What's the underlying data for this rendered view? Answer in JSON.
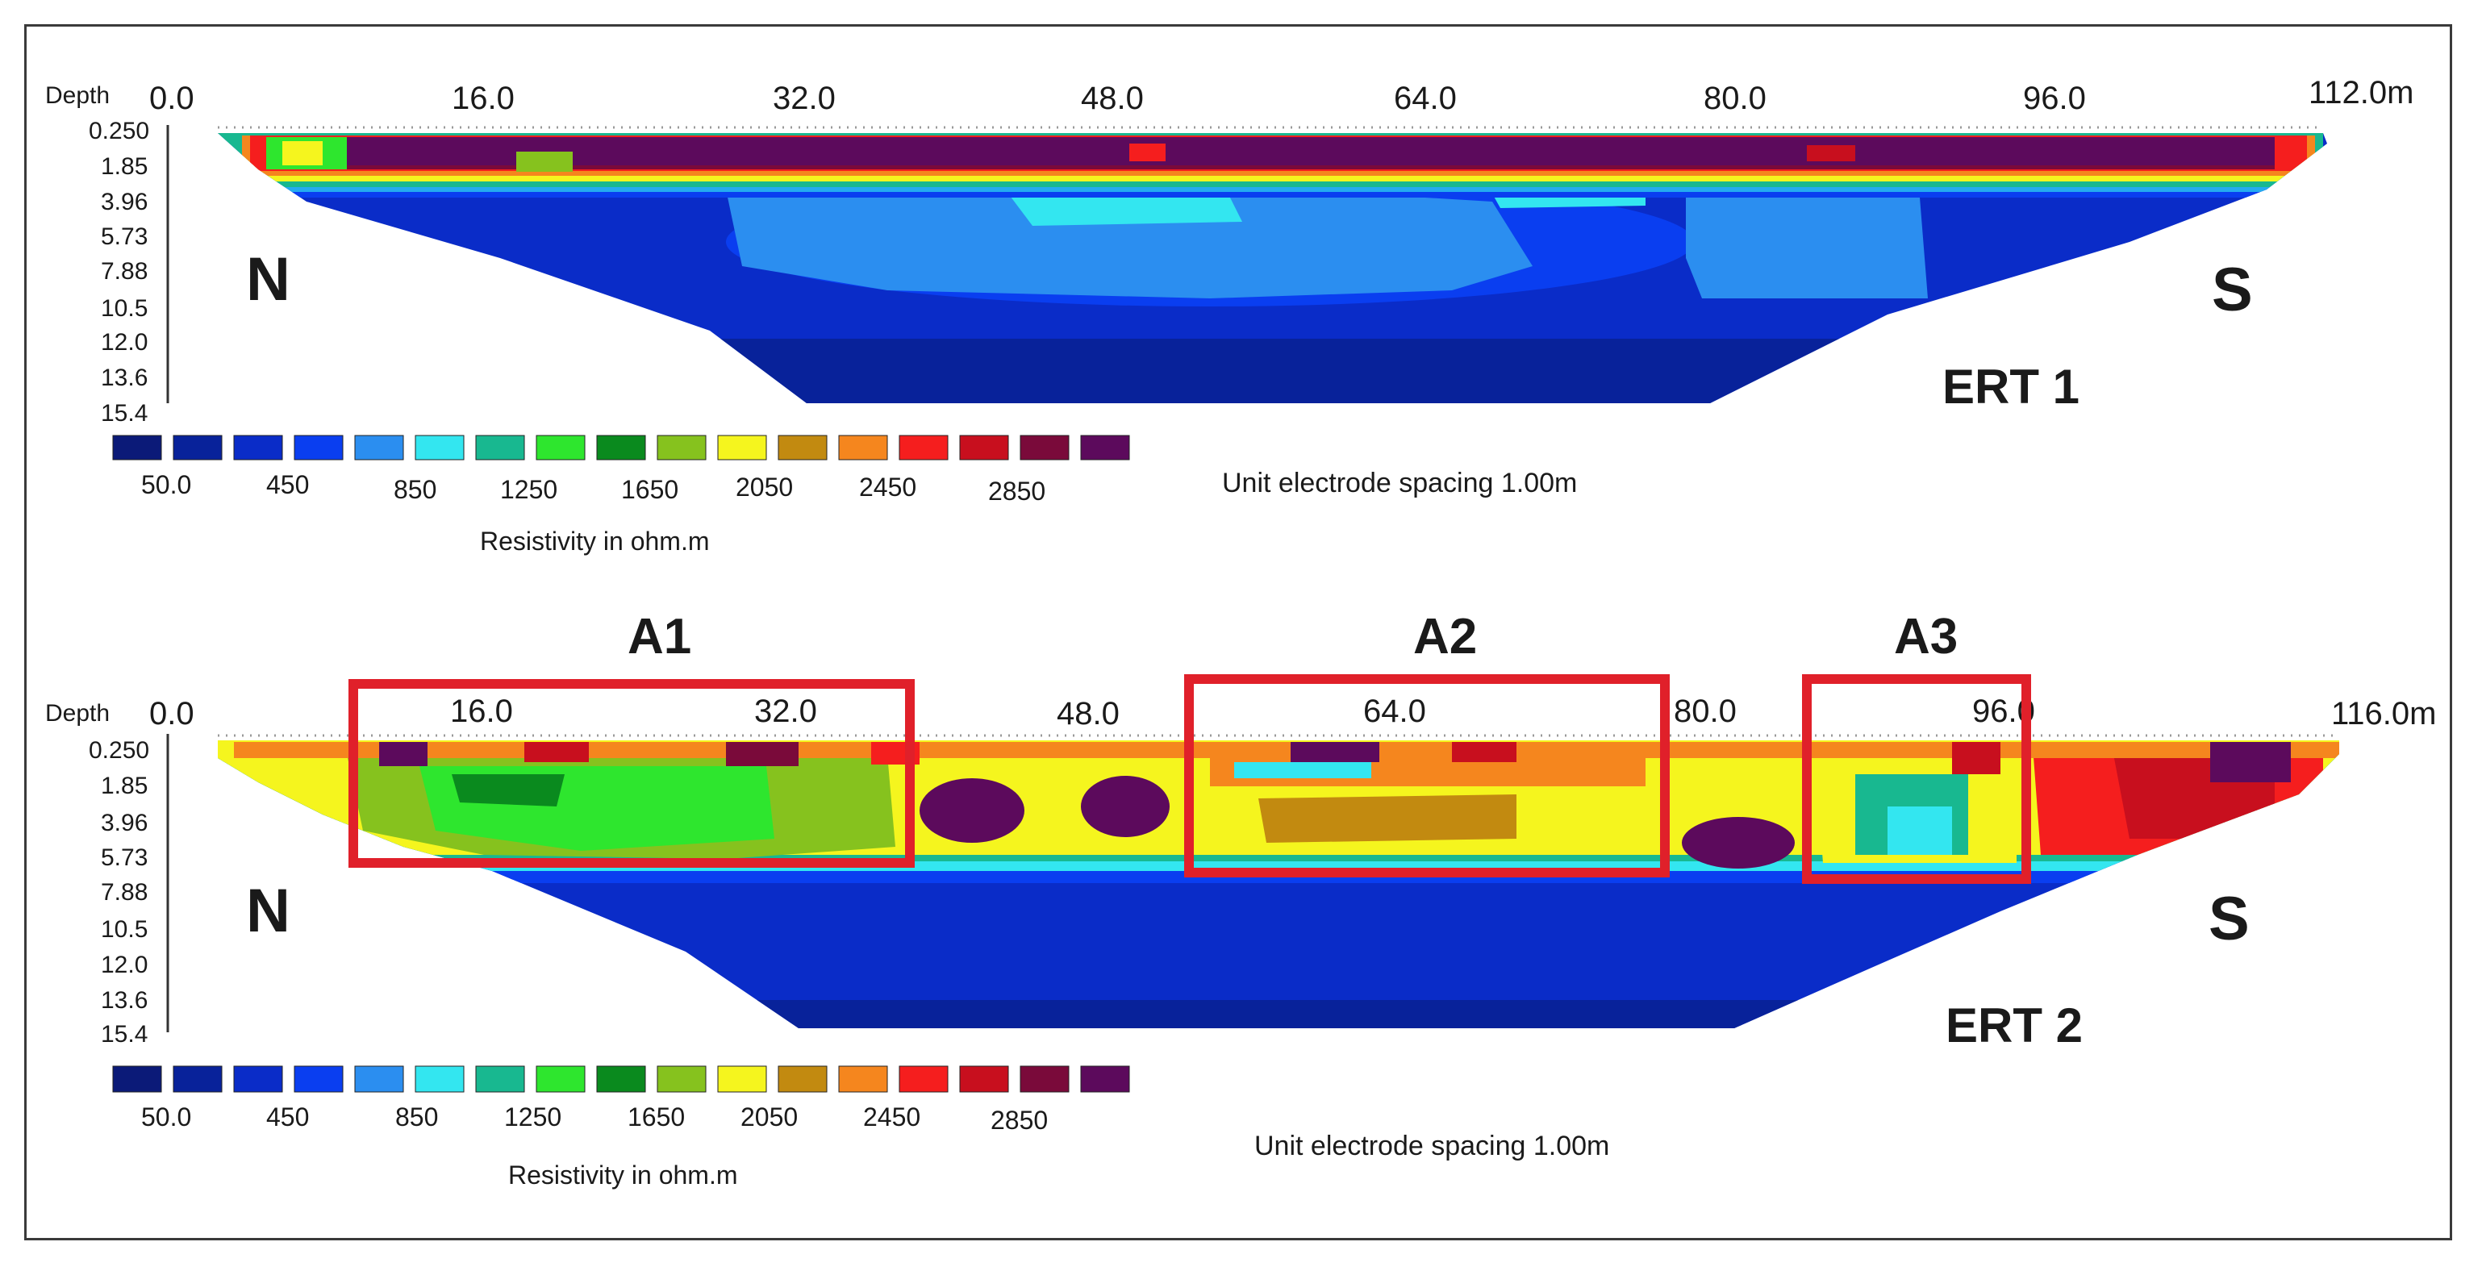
{
  "colors": {
    "frame": "#3a3a3a",
    "anomaly_box": "#e0202a",
    "resistivity_scale": [
      "#0b1a78",
      "#08229a",
      "#0a2cc8",
      "#0a3ef0",
      "#2b8ef0",
      "#33e6f0",
      "#18b890",
      "#2ee62e",
      "#0a8a1e",
      "#86c21e",
      "#f5f51e",
      "#c28a10",
      "#f5861e",
      "#f51e1e",
      "#c80f1e",
      "#7a0a3a",
      "#5c0a5c"
    ]
  },
  "panels": [
    {
      "name": "ERT 1",
      "depth_title": "Depth",
      "distance_ticks": [
        "0.0",
        "16.0",
        "32.0",
        "48.0",
        "64.0",
        "80.0",
        "96.0",
        "112.0m"
      ],
      "depth_ticks": [
        "0.250",
        "1.85",
        "3.96",
        "5.73",
        "7.88",
        "10.5",
        "12.0",
        "13.6",
        "15.4"
      ],
      "left_direction": "N",
      "right_direction": "S",
      "legend_values": [
        "50.0",
        "450",
        "850",
        "1250",
        "1650",
        "2050",
        "2450",
        "2850"
      ],
      "legend_title": "Resistivity in ohm.m",
      "electrode_spacing": "Unit electrode spacing 1.00m",
      "anomalies": []
    },
    {
      "name": "ERT 2",
      "depth_title": "Depth",
      "distance_ticks": [
        "0.0",
        "16.0",
        "32.0",
        "48.0",
        "64.0",
        "80.0",
        "96.0",
        "116.0m"
      ],
      "depth_ticks": [
        "0.250",
        "1.85",
        "3.96",
        "5.73",
        "7.88",
        "10.5",
        "12.0",
        "13.6",
        "15.4"
      ],
      "left_direction": "N",
      "right_direction": "S",
      "legend_values": [
        "50.0",
        "450",
        "850",
        "1250",
        "1650",
        "2050",
        "2450",
        "2850"
      ],
      "legend_title": "Resistivity in ohm.m",
      "electrode_spacing": "Unit electrode spacing 1.00m",
      "anomalies": [
        "A1",
        "A2",
        "A3"
      ]
    }
  ]
}
